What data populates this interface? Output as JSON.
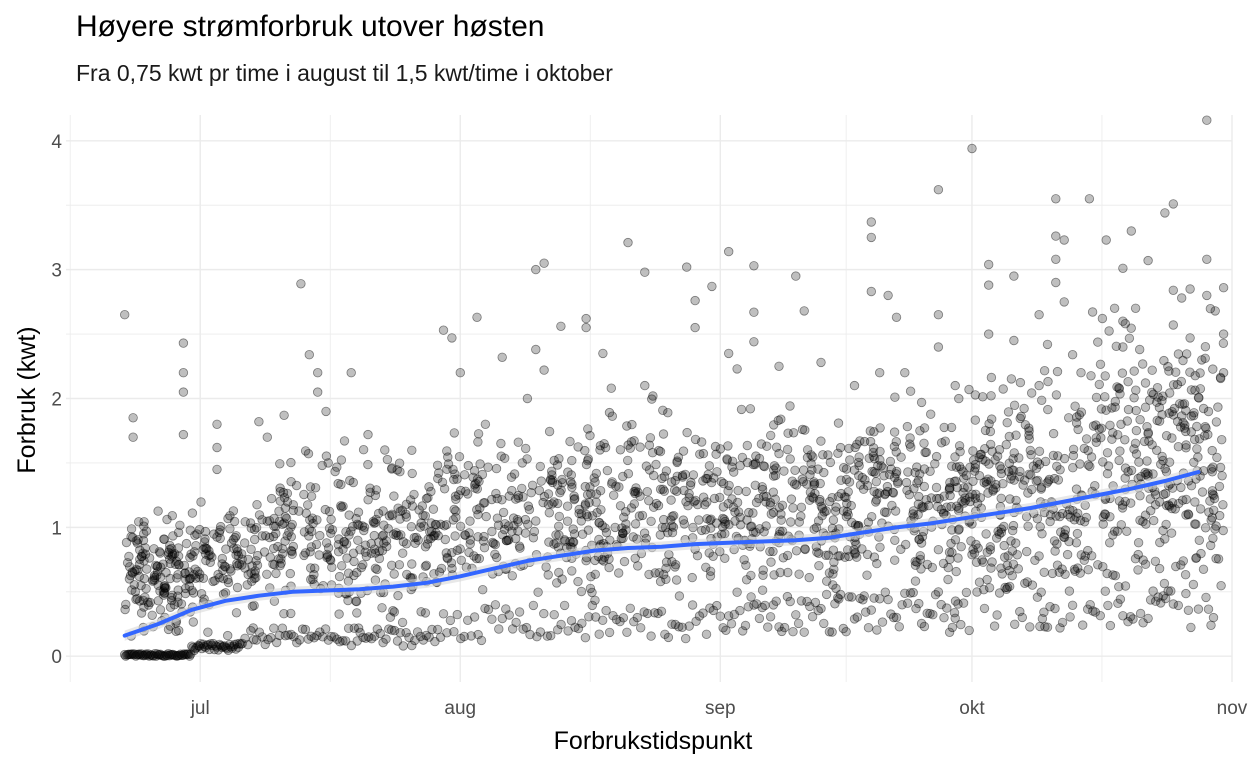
{
  "chart_data": {
    "type": "scatter",
    "title": "Høyere strømforbruk utover høsten",
    "subtitle": "Fra 0,75 kwt pr time i august til 1,5 kwt/time i oktober",
    "xlabel": "Forbrukstidspunkt",
    "ylabel": "Forbruk (kwt)",
    "x_range": [
      "2022-06-15",
      "2022-11-01"
    ],
    "ylim": [
      -0.2,
      4.2
    ],
    "x_ticks": [
      {
        "date": "2022-07-01",
        "label": "jul"
      },
      {
        "date": "2022-08-01",
        "label": "aug"
      },
      {
        "date": "2022-09-01",
        "label": "sep"
      },
      {
        "date": "2022-10-01",
        "label": "okt"
      },
      {
        "date": "2022-11-01",
        "label": "nov"
      }
    ],
    "y_ticks": [
      {
        "value": 0,
        "label": "0"
      },
      {
        "value": 1,
        "label": "1"
      },
      {
        "value": 2,
        "label": "2"
      },
      {
        "value": 3,
        "label": "3"
      },
      {
        "value": 4,
        "label": "4"
      }
    ],
    "grid": true,
    "point_color": "#000000",
    "point_alpha": 0.25,
    "smooth_color": "#3366FF",
    "smooth_band_color": "#d9d9d9",
    "smooth_line": [
      {
        "x": "2022-06-22",
        "y": 0.16
      },
      {
        "x": "2022-06-26",
        "y": 0.25
      },
      {
        "x": "2022-06-30",
        "y": 0.36
      },
      {
        "x": "2022-07-04",
        "y": 0.43
      },
      {
        "x": "2022-07-08",
        "y": 0.47
      },
      {
        "x": "2022-07-12",
        "y": 0.5
      },
      {
        "x": "2022-07-16",
        "y": 0.51
      },
      {
        "x": "2022-07-20",
        "y": 0.52
      },
      {
        "x": "2022-07-24",
        "y": 0.54
      },
      {
        "x": "2022-07-28",
        "y": 0.57
      },
      {
        "x": "2022-08-01",
        "y": 0.62
      },
      {
        "x": "2022-08-05",
        "y": 0.68
      },
      {
        "x": "2022-08-09",
        "y": 0.74
      },
      {
        "x": "2022-08-13",
        "y": 0.78
      },
      {
        "x": "2022-08-17",
        "y": 0.82
      },
      {
        "x": "2022-08-21",
        "y": 0.84
      },
      {
        "x": "2022-08-25",
        "y": 0.85
      },
      {
        "x": "2022-08-29",
        "y": 0.87
      },
      {
        "x": "2022-09-02",
        "y": 0.88
      },
      {
        "x": "2022-09-06",
        "y": 0.89
      },
      {
        "x": "2022-09-10",
        "y": 0.9
      },
      {
        "x": "2022-09-14",
        "y": 0.92
      },
      {
        "x": "2022-09-18",
        "y": 0.96
      },
      {
        "x": "2022-09-22",
        "y": 1.0
      },
      {
        "x": "2022-09-26",
        "y": 1.03
      },
      {
        "x": "2022-09-30",
        "y": 1.07
      },
      {
        "x": "2022-10-04",
        "y": 1.11
      },
      {
        "x": "2022-10-08",
        "y": 1.15
      },
      {
        "x": "2022-10-12",
        "y": 1.2
      },
      {
        "x": "2022-10-16",
        "y": 1.25
      },
      {
        "x": "2022-10-20",
        "y": 1.3
      },
      {
        "x": "2022-10-24",
        "y": 1.36
      },
      {
        "x": "2022-10-28",
        "y": 1.43
      }
    ],
    "points": [
      {
        "x": "2022-06-22",
        "y": 2.65
      },
      {
        "x": "2022-06-23",
        "y": 1.85
      },
      {
        "x": "2022-06-23",
        "y": 1.7
      },
      {
        "x": "2022-06-29",
        "y": 2.43
      },
      {
        "x": "2022-06-29",
        "y": 2.2
      },
      {
        "x": "2022-06-29",
        "y": 2.05
      },
      {
        "x": "2022-06-29",
        "y": 1.72
      },
      {
        "x": "2022-07-03",
        "y": 1.8
      },
      {
        "x": "2022-07-03",
        "y": 1.62
      },
      {
        "x": "2022-07-03",
        "y": 1.45
      },
      {
        "x": "2022-07-08",
        "y": 1.82
      },
      {
        "x": "2022-07-09",
        "y": 1.7
      },
      {
        "x": "2022-07-11",
        "y": 1.87
      },
      {
        "x": "2022-07-13",
        "y": 2.89
      },
      {
        "x": "2022-07-14",
        "y": 2.34
      },
      {
        "x": "2022-07-15",
        "y": 2.2
      },
      {
        "x": "2022-07-15",
        "y": 2.05
      },
      {
        "x": "2022-07-16",
        "y": 1.9
      },
      {
        "x": "2022-07-19",
        "y": 2.2
      },
      {
        "x": "2022-07-21",
        "y": 1.72
      },
      {
        "x": "2022-07-23",
        "y": 1.6
      },
      {
        "x": "2022-07-30",
        "y": 2.53
      },
      {
        "x": "2022-07-31",
        "y": 2.47
      },
      {
        "x": "2022-08-03",
        "y": 2.63
      },
      {
        "x": "2022-08-01",
        "y": 2.2
      },
      {
        "x": "2022-08-04",
        "y": 1.8
      },
      {
        "x": "2022-08-06",
        "y": 2.32
      },
      {
        "x": "2022-08-09",
        "y": 2.0
      },
      {
        "x": "2022-08-10",
        "y": 3.0
      },
      {
        "x": "2022-08-10",
        "y": 2.38
      },
      {
        "x": "2022-08-11",
        "y": 3.05
      },
      {
        "x": "2022-08-11",
        "y": 2.22
      },
      {
        "x": "2022-08-13",
        "y": 2.56
      },
      {
        "x": "2022-08-16",
        "y": 2.62
      },
      {
        "x": "2022-08-16",
        "y": 2.55
      },
      {
        "x": "2022-08-18",
        "y": 2.35
      },
      {
        "x": "2022-08-19",
        "y": 2.08
      },
      {
        "x": "2022-08-21",
        "y": 3.21
      },
      {
        "x": "2022-08-23",
        "y": 2.98
      },
      {
        "x": "2022-08-23",
        "y": 2.1
      },
      {
        "x": "2022-08-28",
        "y": 3.02
      },
      {
        "x": "2022-08-29",
        "y": 2.76
      },
      {
        "x": "2022-08-29",
        "y": 2.55
      },
      {
        "x": "2022-08-31",
        "y": 2.87
      },
      {
        "x": "2022-09-02",
        "y": 3.14
      },
      {
        "x": "2022-09-02",
        "y": 2.35
      },
      {
        "x": "2022-09-03",
        "y": 2.23
      },
      {
        "x": "2022-09-05",
        "y": 3.03
      },
      {
        "x": "2022-09-05",
        "y": 2.67
      },
      {
        "x": "2022-09-05",
        "y": 2.44
      },
      {
        "x": "2022-09-08",
        "y": 2.25
      },
      {
        "x": "2022-09-10",
        "y": 2.95
      },
      {
        "x": "2022-09-11",
        "y": 2.68
      },
      {
        "x": "2022-09-13",
        "y": 2.28
      },
      {
        "x": "2022-09-17",
        "y": 2.1
      },
      {
        "x": "2022-09-19",
        "y": 3.37
      },
      {
        "x": "2022-09-19",
        "y": 3.25
      },
      {
        "x": "2022-09-19",
        "y": 2.83
      },
      {
        "x": "2022-09-20",
        "y": 2.2
      },
      {
        "x": "2022-09-21",
        "y": 2.8
      },
      {
        "x": "2022-09-22",
        "y": 2.63
      },
      {
        "x": "2022-09-23",
        "y": 2.2
      },
      {
        "x": "2022-09-25",
        "y": 1.97
      },
      {
        "x": "2022-09-27",
        "y": 3.62
      },
      {
        "x": "2022-09-27",
        "y": 2.65
      },
      {
        "x": "2022-09-27",
        "y": 2.4
      },
      {
        "x": "2022-09-29",
        "y": 2.1
      },
      {
        "x": "2022-10-01",
        "y": 3.94
      },
      {
        "x": "2022-10-03",
        "y": 3.04
      },
      {
        "x": "2022-10-03",
        "y": 2.88
      },
      {
        "x": "2022-10-03",
        "y": 2.5
      },
      {
        "x": "2022-10-06",
        "y": 2.95
      },
      {
        "x": "2022-10-06",
        "y": 2.45
      },
      {
        "x": "2022-10-09",
        "y": 2.65
      },
      {
        "x": "2022-10-09",
        "y": 2.1
      },
      {
        "x": "2022-10-10",
        "y": 2.42
      },
      {
        "x": "2022-10-11",
        "y": 3.55
      },
      {
        "x": "2022-10-11",
        "y": 3.26
      },
      {
        "x": "2022-10-11",
        "y": 3.08
      },
      {
        "x": "2022-10-11",
        "y": 2.9
      },
      {
        "x": "2022-10-12",
        "y": 3.23
      },
      {
        "x": "2022-10-12",
        "y": 2.75
      },
      {
        "x": "2022-10-13",
        "y": 2.34
      },
      {
        "x": "2022-10-14",
        "y": 2.2
      },
      {
        "x": "2022-10-15",
        "y": 3.55
      },
      {
        "x": "2022-10-17",
        "y": 3.23
      },
      {
        "x": "2022-10-18",
        "y": 2.7
      },
      {
        "x": "2022-10-19",
        "y": 3.01
      },
      {
        "x": "2022-10-19",
        "y": 2.6
      },
      {
        "x": "2022-10-19",
        "y": 2.4
      },
      {
        "x": "2022-10-20",
        "y": 3.3
      },
      {
        "x": "2022-10-21",
        "y": 2.38
      },
      {
        "x": "2022-10-22",
        "y": 3.07
      },
      {
        "x": "2022-10-24",
        "y": 3.44
      },
      {
        "x": "2022-10-25",
        "y": 3.51
      },
      {
        "x": "2022-10-25",
        "y": 2.84
      },
      {
        "x": "2022-10-25",
        "y": 2.57
      },
      {
        "x": "2022-10-26",
        "y": 2.78
      },
      {
        "x": "2022-10-27",
        "y": 2.85
      },
      {
        "x": "2022-10-27",
        "y": 2.47
      },
      {
        "x": "2022-10-29",
        "y": 4.16
      },
      {
        "x": "2022-10-29",
        "y": 2.8
      },
      {
        "x": "2022-10-29",
        "y": 3.08
      },
      {
        "x": "2022-10-30",
        "y": 2.68
      },
      {
        "x": "2022-10-31",
        "y": 2.86
      },
      {
        "x": "2022-10-31",
        "y": 2.5
      },
      {
        "x": "2022-10-31",
        "y": 2.2
      }
    ],
    "generated_points": [
      {
        "from": "2022-06-22",
        "to": "2022-06-30",
        "n": 150,
        "lo": 0.0,
        "hi": 1.0
      },
      {
        "from": "2022-06-30",
        "to": "2022-07-08",
        "n": 110,
        "lo": 0.05,
        "hi": 1.15
      },
      {
        "from": "2022-07-08",
        "to": "2022-07-30",
        "n": 300,
        "lo": 0.1,
        "hi": 1.45
      },
      {
        "from": "2022-07-30",
        "to": "2022-08-15",
        "n": 210,
        "lo": 0.15,
        "hi": 1.6
      },
      {
        "from": "2022-08-15",
        "to": "2022-09-01",
        "n": 240,
        "lo": 0.15,
        "hi": 1.75
      },
      {
        "from": "2022-09-01",
        "to": "2022-09-17",
        "n": 240,
        "lo": 0.15,
        "hi": 1.8
      },
      {
        "from": "2022-09-17",
        "to": "2022-10-01",
        "n": 220,
        "lo": 0.2,
        "hi": 1.85
      },
      {
        "from": "2022-10-01",
        "to": "2022-10-15",
        "n": 230,
        "lo": 0.2,
        "hi": 2.0
      },
      {
        "from": "2022-10-15",
        "to": "2022-10-31",
        "n": 280,
        "lo": 0.25,
        "hi": 2.4
      }
    ],
    "floor_bands": [
      {
        "from": "2022-06-22",
        "to": "2022-06-30",
        "lo": 0.0,
        "hi": 0.02,
        "n": 60
      },
      {
        "from": "2022-06-30",
        "to": "2022-07-06",
        "lo": 0.04,
        "hi": 0.1,
        "n": 40
      },
      {
        "from": "2022-07-06",
        "to": "2022-07-30",
        "lo": 0.08,
        "hi": 0.22,
        "n": 70
      },
      {
        "from": "2022-07-30",
        "to": "2022-09-01",
        "lo": 0.12,
        "hi": 0.4,
        "n": 80
      },
      {
        "from": "2022-09-01",
        "to": "2022-10-01",
        "lo": 0.18,
        "hi": 0.5,
        "n": 90
      },
      {
        "from": "2022-10-01",
        "to": "2022-10-31",
        "lo": 0.22,
        "hi": 0.8,
        "n": 100
      }
    ]
  }
}
